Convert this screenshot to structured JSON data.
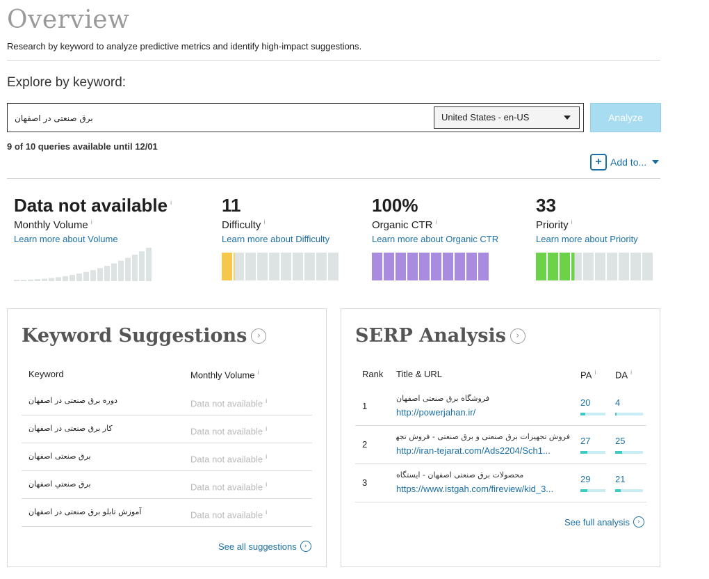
{
  "header": {
    "title": "Overview",
    "subtitle": "Research by keyword to analyze predictive metrics and identify high-impact suggestions."
  },
  "search": {
    "label": "Explore by keyword:",
    "value": "برق صنعتی در اصفهان",
    "locale": "United States - en-US",
    "analyze_label": "Analyze",
    "queries_note": "9 of 10 queries available until 12/01",
    "add_to_label": "Add to..."
  },
  "metrics": {
    "volume": {
      "value": "Data not available",
      "label": "Monthly Volume",
      "link": "Learn more about Volume"
    },
    "difficulty": {
      "value": "11",
      "label": "Difficulty",
      "link": "Learn more about Difficulty",
      "score": 11
    },
    "ctr": {
      "value": "100%",
      "label": "Organic CTR",
      "link": "Learn more about Organic CTR",
      "score": 100
    },
    "priority": {
      "value": "33",
      "label": "Priority",
      "link": "Learn more about Priority",
      "score": 33
    }
  },
  "keyword_suggestions": {
    "title": "Keyword Suggestions",
    "col_keyword": "Keyword",
    "col_volume": "Monthly Volume",
    "rows": [
      {
        "keyword": "دوره برق صنعتی در اصفهان",
        "volume": "Data not available"
      },
      {
        "keyword": "کار برق صنعتی در اصفهان",
        "volume": "Data not available"
      },
      {
        "keyword": "برق صنعتی اصفهان",
        "volume": "Data not available"
      },
      {
        "keyword": "برق صنعتي اصفهان",
        "volume": "Data not available"
      },
      {
        "keyword": "آموزش تابلو برق صنعتی در اصفهان",
        "volume": "Data not available"
      }
    ],
    "see_all": "See all suggestions"
  },
  "serp": {
    "title": "SERP Analysis",
    "col_rank": "Rank",
    "col_title": "Title & URL",
    "col_pa": "PA",
    "col_da": "DA",
    "rows": [
      {
        "rank": "1",
        "title": "فروشگاه برق صنعتی اصفهان",
        "url": "http://powerjahan.ir/",
        "pa": "20",
        "da": "4"
      },
      {
        "rank": "2",
        "title": "فروش تجهیزات برق صنعتی و برق صنعتی - فروش تجهیزات اتوماسیون",
        "url": "http://iran-tejarat.com/Ads2204/Sch1...",
        "pa": "27",
        "da": "25"
      },
      {
        "rank": "3",
        "title": "محصولات برق صنعتی اصفهان - ایستگاه",
        "url": "https://www.istgah.com/fireview/kid_3...",
        "pa": "29",
        "da": "21"
      }
    ],
    "see_full": "See full analysis"
  },
  "colors": {
    "link": "#1a6fa6",
    "difficulty": "#f5c84c",
    "ctr": "#a98be0",
    "priority": "#6bd24a",
    "empty_segment": "#dde3e3",
    "bar_fill": "#3ccbc0"
  }
}
